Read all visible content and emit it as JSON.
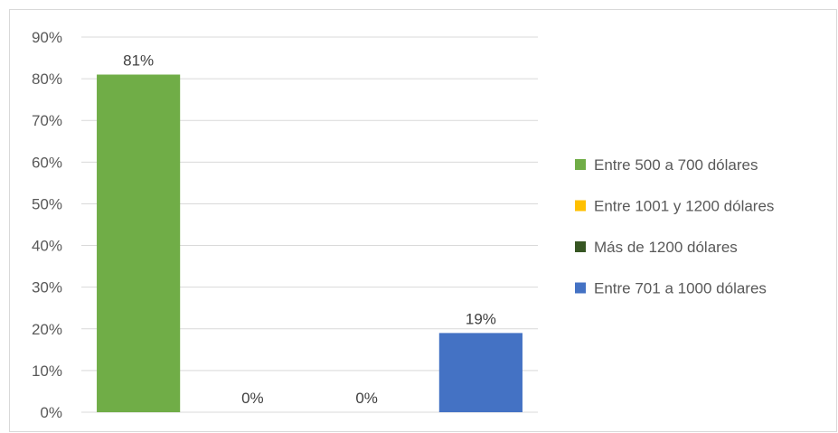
{
  "chart_data": {
    "type": "bar",
    "categories": [
      "Entre 500 a 700 dólares",
      "Entre 1001 y 1200 dólares",
      "Más de 1200 dólares",
      "Entre 701 a 1000 dólares"
    ],
    "series": [
      {
        "values": [
          81,
          0,
          0,
          19
        ],
        "data_labels": [
          "81%",
          "0%",
          "0%",
          "19%"
        ],
        "colors": [
          "#70AD47",
          "#FFC000",
          "#375623",
          "#4472C4"
        ]
      }
    ],
    "title": "",
    "xlabel": "",
    "ylabel": "",
    "ylim": [
      0,
      90
    ],
    "y_ticks": [
      0,
      10,
      20,
      30,
      40,
      50,
      60,
      70,
      80,
      90
    ],
    "y_tick_labels": [
      "0%",
      "10%",
      "20%",
      "30%",
      "40%",
      "50%",
      "60%",
      "70%",
      "80%",
      "90%"
    ],
    "grid": true,
    "legend": {
      "placement": "right",
      "entries": [
        "Entre 500 a 700 dólares",
        "Entre 1001 y 1200 dólares",
        "Más de 1200 dólares",
        "Entre 701 a 1000 dólares"
      ]
    }
  }
}
